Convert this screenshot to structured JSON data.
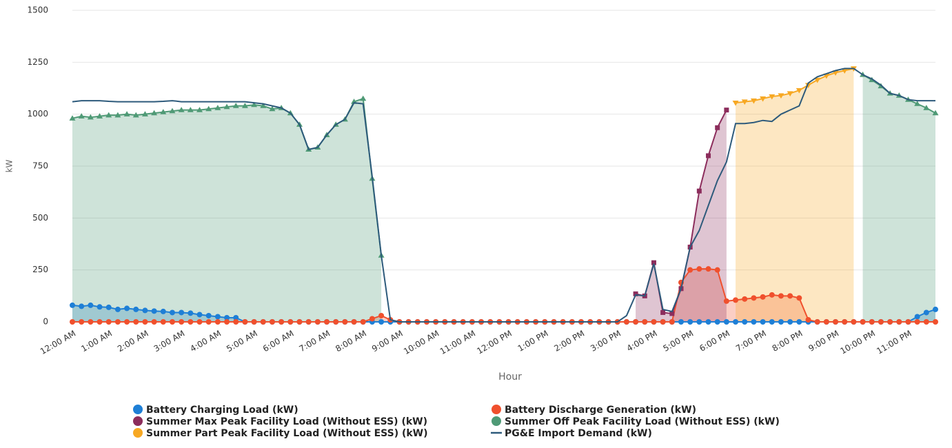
{
  "chart_data": {
    "type": "area",
    "x_label": "Hour",
    "y_label": "kW",
    "categories": [
      "12:00 AM",
      null,
      null,
      null,
      "1:00 AM",
      null,
      null,
      null,
      "2:00 AM",
      null,
      null,
      null,
      "3:00 AM",
      null,
      null,
      null,
      "4:00 AM",
      null,
      null,
      null,
      "5:00 AM",
      null,
      null,
      null,
      "6:00 AM",
      null,
      null,
      null,
      "7:00 AM",
      null,
      null,
      null,
      "8:00 AM",
      null,
      null,
      null,
      "9:00 AM",
      null,
      null,
      null,
      "10:00 AM",
      null,
      null,
      null,
      "11:00 AM",
      null,
      null,
      null,
      "12:00 PM",
      null,
      null,
      null,
      "1:00 PM",
      null,
      null,
      null,
      "2:00 PM",
      null,
      null,
      null,
      "3:00 PM",
      null,
      null,
      null,
      "4:00 PM",
      null,
      null,
      null,
      "5:00 PM",
      null,
      null,
      null,
      "6:00 PM",
      null,
      null,
      null,
      "7:00 PM",
      null,
      null,
      null,
      "8:00 PM",
      null,
      null,
      null,
      "9:00 PM",
      null,
      null,
      null,
      "10:00 PM",
      null,
      null,
      null,
      "11:00 PM",
      null,
      null,
      null
    ],
    "ylim": [
      0,
      1500
    ],
    "yticks": [
      0,
      250,
      500,
      750,
      1000,
      1250,
      1500
    ],
    "grid": true,
    "legend": "bottom",
    "series": [
      {
        "name": "Battery Charging Load (kW)",
        "color": "#1e7fd6",
        "kind": "area",
        "marker": "circle",
        "values": [
          80,
          75,
          80,
          72,
          70,
          60,
          65,
          60,
          55,
          52,
          50,
          45,
          45,
          42,
          35,
          30,
          25,
          20,
          20,
          0,
          0,
          0,
          0,
          0,
          0,
          0,
          0,
          0,
          0,
          0,
          0,
          0,
          0,
          0,
          0,
          0,
          0,
          0,
          0,
          0,
          0,
          0,
          0,
          0,
          0,
          0,
          0,
          0,
          0,
          0,
          0,
          0,
          0,
          0,
          0,
          0,
          0,
          0,
          0,
          0,
          0,
          0,
          0,
          0,
          0,
          0,
          0,
          0,
          0,
          0,
          0,
          0,
          0,
          0,
          0,
          0,
          0,
          0,
          0,
          0,
          0,
          0,
          0,
          0,
          0,
          0,
          0,
          0,
          0,
          0,
          0,
          0,
          0,
          25,
          45,
          60
        ]
      },
      {
        "name": "Battery Discharge Generation (kW)",
        "color": "#f0502d",
        "kind": "area",
        "marker": "circle",
        "values": [
          0,
          0,
          0,
          0,
          0,
          0,
          0,
          0,
          0,
          0,
          0,
          0,
          0,
          0,
          0,
          0,
          0,
          0,
          0,
          0,
          0,
          0,
          0,
          0,
          0,
          0,
          0,
          0,
          0,
          0,
          0,
          0,
          0,
          15,
          30,
          10,
          0,
          0,
          0,
          0,
          0,
          0,
          0,
          0,
          0,
          0,
          0,
          0,
          0,
          0,
          0,
          0,
          0,
          0,
          0,
          0,
          0,
          0,
          0,
          0,
          0,
          0,
          0,
          0,
          0,
          0,
          0,
          190,
          250,
          255,
          255,
          250,
          100,
          105,
          110,
          115,
          120,
          130,
          125,
          125,
          115,
          10,
          0,
          0,
          0,
          0,
          0,
          0,
          0,
          0,
          0,
          0,
          0,
          0,
          0,
          0
        ]
      },
      {
        "name": "Summer Max Peak Facility Load (Without ESS) (kW)",
        "color": "#8c2d5c",
        "kind": "area",
        "marker": "square",
        "values": [
          null,
          null,
          null,
          null,
          null,
          null,
          null,
          null,
          null,
          null,
          null,
          null,
          null,
          null,
          null,
          null,
          null,
          null,
          null,
          null,
          null,
          null,
          null,
          null,
          null,
          null,
          null,
          null,
          null,
          null,
          null,
          null,
          null,
          null,
          null,
          null,
          null,
          null,
          null,
          null,
          null,
          null,
          null,
          null,
          null,
          null,
          null,
          null,
          null,
          null,
          null,
          null,
          null,
          null,
          null,
          null,
          null,
          null,
          null,
          null,
          null,
          null,
          135,
          125,
          285,
          45,
          40,
          160,
          360,
          630,
          800,
          935,
          1020,
          null,
          null,
          null,
          null,
          null,
          null,
          null,
          null,
          null,
          null,
          null,
          null,
          null,
          null,
          null,
          null,
          null,
          null,
          null,
          null,
          null,
          null,
          null
        ]
      },
      {
        "name": "Summer Off Peak Facility Load (Without ESS) (kW)",
        "color": "#4f9a76",
        "kind": "area",
        "marker": "triangle",
        "values": [
          980,
          990,
          985,
          990,
          995,
          995,
          1000,
          995,
          1000,
          1005,
          1010,
          1015,
          1020,
          1020,
          1020,
          1025,
          1030,
          1035,
          1040,
          1040,
          1045,
          1040,
          1025,
          1030,
          1005,
          950,
          830,
          840,
          900,
          950,
          975,
          1060,
          1075,
          690,
          320,
          null,
          null,
          null,
          null,
          null,
          null,
          null,
          null,
          null,
          null,
          null,
          null,
          null,
          null,
          null,
          null,
          null,
          null,
          null,
          null,
          null,
          null,
          null,
          null,
          null,
          null,
          null,
          null,
          null,
          null,
          null,
          null,
          null,
          null,
          null,
          null,
          null,
          null,
          null,
          null,
          null,
          null,
          null,
          null,
          null,
          null,
          null,
          null,
          null,
          null,
          null,
          null,
          1190,
          1165,
          1135,
          1100,
          1090,
          1070,
          1050,
          1030,
          1005
        ]
      },
      {
        "name": "Summer Part Peak Facility Load (Without ESS) (kW)",
        "color": "#f7a823",
        "kind": "area",
        "marker": "triangle-down",
        "values": [
          null,
          null,
          null,
          null,
          null,
          null,
          null,
          null,
          null,
          null,
          null,
          null,
          null,
          null,
          null,
          null,
          null,
          null,
          null,
          null,
          null,
          null,
          null,
          null,
          null,
          null,
          null,
          null,
          null,
          null,
          null,
          null,
          null,
          null,
          null,
          null,
          null,
          null,
          null,
          null,
          null,
          null,
          null,
          null,
          null,
          null,
          null,
          null,
          null,
          null,
          null,
          null,
          null,
          null,
          null,
          null,
          null,
          null,
          null,
          null,
          null,
          null,
          null,
          null,
          null,
          null,
          null,
          null,
          null,
          null,
          null,
          null,
          null,
          1055,
          1060,
          1065,
          1075,
          1085,
          1090,
          1100,
          1115,
          1140,
          1165,
          1185,
          1200,
          1210,
          1220,
          null,
          null,
          null,
          null,
          null,
          null,
          null,
          null,
          null
        ]
      },
      {
        "name": "PG&E Import Demand (kW)",
        "color": "#2d5a7b",
        "kind": "line",
        "values": [
          1060,
          1065,
          1065,
          1065,
          1062,
          1060,
          1060,
          1060,
          1060,
          1060,
          1062,
          1065,
          1060,
          1060,
          1060,
          1060,
          1060,
          1060,
          1060,
          1060,
          1055,
          1050,
          1040,
          1030,
          1005,
          950,
          830,
          840,
          900,
          950,
          975,
          1055,
          1050,
          700,
          320,
          10,
          0,
          0,
          0,
          0,
          0,
          0,
          0,
          0,
          0,
          0,
          0,
          0,
          0,
          0,
          0,
          0,
          0,
          0,
          0,
          0,
          0,
          0,
          0,
          0,
          0,
          30,
          130,
          125,
          280,
          60,
          50,
          160,
          360,
          440,
          560,
          680,
          770,
          955,
          955,
          960,
          970,
          965,
          1000,
          1020,
          1040,
          1150,
          1180,
          1195,
          1210,
          1220,
          1220,
          1190,
          1170,
          1140,
          1100,
          1090,
          1070,
          1065,
          1065,
          1065
        ]
      }
    ]
  }
}
